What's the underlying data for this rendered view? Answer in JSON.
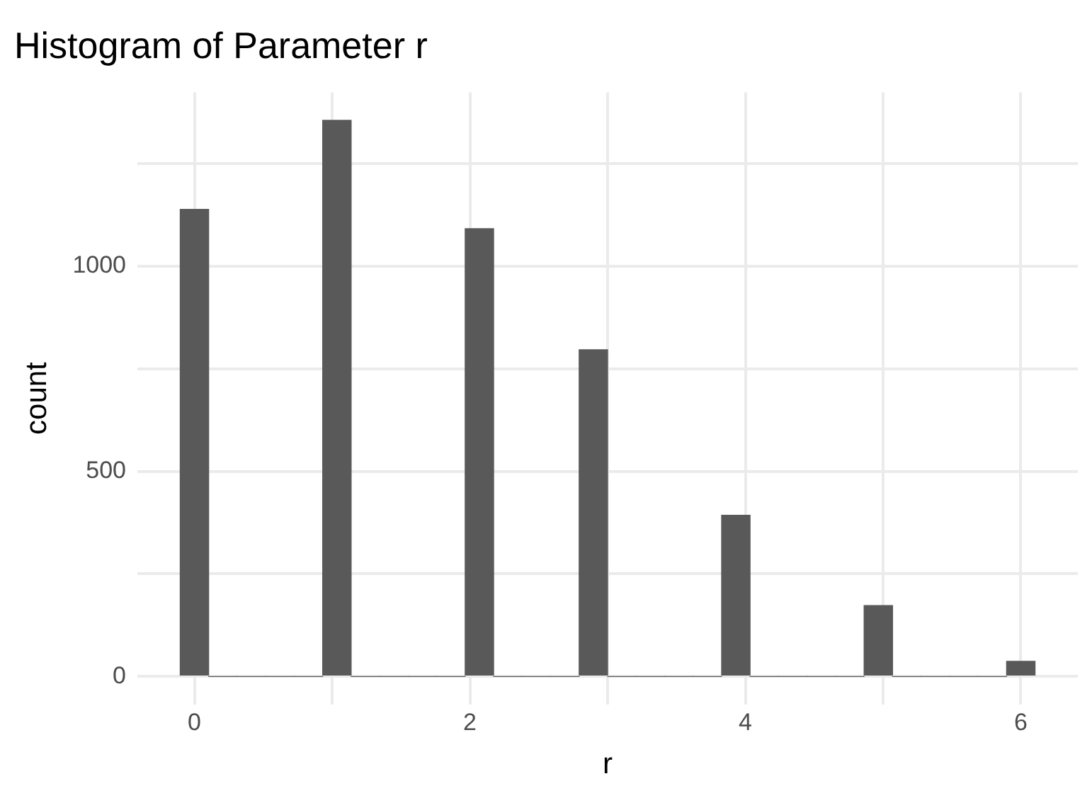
{
  "chart_data": {
    "type": "histogram",
    "title": "Histogram of Parameter r",
    "xlabel": "r",
    "ylabel": "count",
    "bins": [
      -0.103,
      0.103,
      0.31,
      0.517,
      0.724,
      0.931,
      1.138,
      1.345,
      1.552,
      1.759,
      1.966,
      2.172,
      2.379,
      2.586,
      2.793,
      3.0,
      3.207,
      3.414,
      3.621,
      3.828,
      4.034,
      4.241,
      4.448,
      4.655,
      4.862,
      5.069,
      5.276,
      5.483,
      5.69,
      5.897,
      6.103
    ],
    "values": [
      1138,
      0,
      0,
      0,
      0,
      1355,
      0,
      0,
      0,
      0,
      1091,
      0,
      0,
      0,
      796,
      0,
      0,
      0,
      0,
      393,
      0,
      0,
      0,
      0,
      173,
      0,
      0,
      0,
      0,
      37
    ],
    "color": "#595959",
    "xlim": [
      -0.414,
      6.414
    ],
    "xticks": [
      0,
      {
        "value": 1,
        "label": null
      },
      2,
      {
        "value": 3,
        "label": null
      },
      4,
      {
        "value": 5,
        "label": null
      },
      6
    ],
    "ylim": [
      -68,
      1423
    ],
    "yticks": [
      0,
      {
        "value": 250,
        "label": null
      },
      500,
      {
        "value": 750,
        "label": null
      },
      1000,
      {
        "value": 1250,
        "label": null
      }
    ],
    "grid": true
  }
}
